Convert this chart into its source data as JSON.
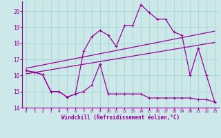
{
  "xlabel": "Windchill (Refroidissement éolien,°C)",
  "bg_color": "#cce8e8",
  "line_color": "#990099",
  "grid_color": "#b0d8d8",
  "xlim": [
    -0.5,
    23.5
  ],
  "ylim": [
    14,
    20.6
  ],
  "yticks": [
    14,
    15,
    16,
    17,
    18,
    19,
    20
  ],
  "xticks": [
    0,
    1,
    2,
    3,
    4,
    5,
    6,
    7,
    8,
    9,
    10,
    11,
    12,
    13,
    14,
    15,
    16,
    17,
    18,
    19,
    20,
    21,
    22,
    23
  ],
  "series1_x": [
    0,
    1,
    2,
    3,
    4,
    5,
    6,
    7,
    8,
    9,
    10,
    11,
    12,
    13,
    14,
    15,
    16,
    17,
    18,
    19,
    20,
    21,
    22,
    23
  ],
  "series1_y": [
    16.3,
    16.2,
    16.05,
    15.0,
    15.0,
    14.65,
    14.85,
    15.0,
    15.4,
    16.7,
    14.85,
    14.85,
    14.85,
    14.85,
    14.85,
    14.6,
    14.6,
    14.6,
    14.6,
    14.6,
    14.6,
    14.5,
    14.5,
    14.35
  ],
  "series2_x": [
    0,
    1,
    2,
    3,
    4,
    5,
    6,
    7,
    8,
    9,
    10,
    11,
    12,
    13,
    14,
    15,
    16,
    17,
    18,
    19,
    20,
    21,
    22,
    23
  ],
  "series2_y": [
    16.3,
    16.2,
    16.05,
    15.0,
    15.0,
    14.65,
    14.85,
    17.5,
    18.4,
    18.8,
    18.5,
    17.8,
    19.1,
    19.1,
    20.4,
    19.9,
    19.5,
    19.5,
    18.7,
    18.5,
    16.0,
    17.7,
    16.0,
    14.35
  ],
  "regline1_x": [
    0,
    23
  ],
  "regline1_y": [
    16.1,
    18.05
  ],
  "regline2_x": [
    0,
    23
  ],
  "regline2_y": [
    16.45,
    18.75
  ]
}
